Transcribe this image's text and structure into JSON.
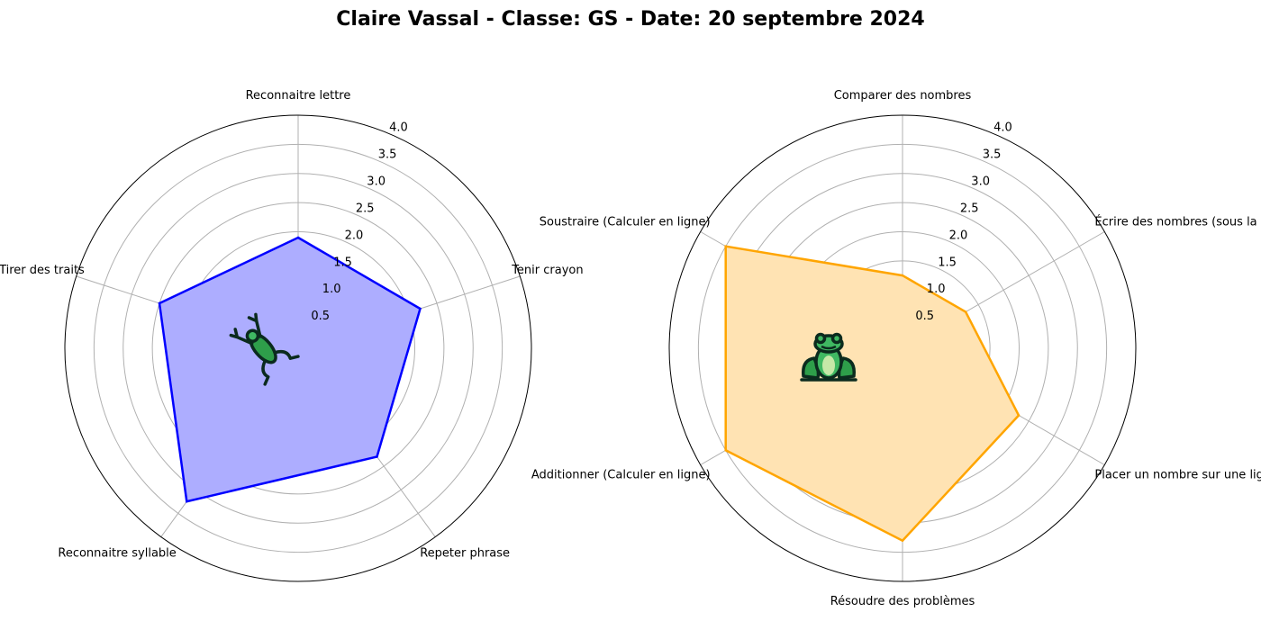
{
  "title": "Claire Vassal - Classe: GS - Date: 20 septembre 2024",
  "chart_data": [
    {
      "type": "radar",
      "categories": [
        "Reconnaitre lettre",
        "Tenir crayon",
        "Repeter phrase",
        "Reconnaitre syllable",
        "Tirer des traits"
      ],
      "series": [
        {
          "values": [
            1.9,
            2.2,
            2.3,
            3.25,
            2.5
          ]
        }
      ],
      "rlim": [
        0,
        4
      ],
      "rticks": [
        "0.5",
        "1.0",
        "1.5",
        "2.0",
        "2.5",
        "3.0",
        "3.5",
        "4.0"
      ],
      "grid": true,
      "color": "#0000ff",
      "fill_color": "#adadff",
      "icon": "frog-leaping-icon"
    },
    {
      "type": "radar",
      "categories": [
        "Comparer des nombres",
        "Écrire des nombres (sous la dictée)",
        "Placer un nombre sur une ligne graduée",
        "Résoudre des problèmes",
        "Additionner (Calculer en ligne)",
        "Soustraire (Calculer en ligne)"
      ],
      "series": [
        {
          "values": [
            1.25,
            1.25,
            2.3,
            3.3,
            3.5,
            3.5
          ]
        }
      ],
      "rlim": [
        0,
        4
      ],
      "rticks": [
        "0.5",
        "1.0",
        "1.5",
        "2.0",
        "2.5",
        "3.0",
        "3.5",
        "4.0"
      ],
      "grid": true,
      "color": "#ffa500",
      "fill_color": "#ffe3b3",
      "icon": "frog-sitting-icon"
    }
  ]
}
